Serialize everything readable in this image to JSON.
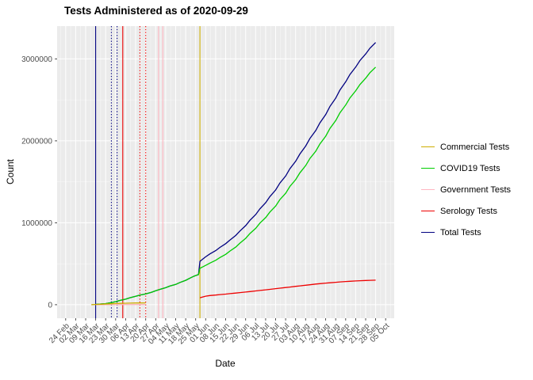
{
  "title": "Tests Administered as of 2020-09-29",
  "axes": {
    "x": {
      "label": "Date",
      "tick_labels": [
        "24 Feb",
        "02 Mar",
        "09 Mar",
        "16 Mar",
        "23 Mar",
        "30 Mar",
        "06 Apr",
        "13 Apr",
        "20 Apr",
        "27 Apr",
        "04 May",
        "11 May",
        "18 May",
        "25 May",
        "01 Jun",
        "08 Jun",
        "15 Jun",
        "22 Jun",
        "29 Jun",
        "06 Jul",
        "13 Jul",
        "20 Jul",
        "27 Jul",
        "03 Aug",
        "10 Aug",
        "17 Aug",
        "24 Aug",
        "31 Aug",
        "07 Sep",
        "14 Sep",
        "21 Sep",
        "28 Sep",
        "05 Oct"
      ]
    },
    "y": {
      "label": "Count",
      "ticks": [
        {
          "value": 0,
          "label": "0"
        },
        {
          "value": 1000000,
          "label": "1000000"
        },
        {
          "value": 2000000,
          "label": "2000000"
        },
        {
          "value": 3000000,
          "label": "3000000"
        }
      ]
    }
  },
  "legend": {
    "position": "right"
  },
  "colors": {
    "panel_background": "#EBEBEB",
    "grid_major": "#FFFFFF",
    "grid_minor": "#F7F7F7",
    "tick_text": "#4D4D4D",
    "tick_mark": "#333333"
  },
  "chart_data": {
    "type": "line",
    "x_unit": "days since 2020-02-24 (weekly ticks)",
    "x_tick_positions": [
      0,
      7,
      14,
      21,
      28,
      35,
      42,
      49,
      56,
      63,
      70,
      77,
      84,
      91,
      98,
      105,
      112,
      119,
      126,
      133,
      140,
      147,
      154,
      161,
      168,
      175,
      182,
      189,
      196,
      203,
      210,
      217,
      224
    ],
    "xlim": [
      -6,
      230
    ],
    "ylim": [
      -165000,
      3400000
    ],
    "y_minor": [
      500000,
      1500000,
      2500000
    ],
    "grid": true,
    "legend_position": "right",
    "draw_order": [
      4,
      1,
      2,
      3,
      0
    ],
    "series": [
      {
        "name": "Commercial Tests",
        "id": "commercial-tests",
        "color": "#CDAD00",
        "points": [
          [
            18,
            1000
          ],
          [
            21,
            3000
          ],
          [
            25,
            6000
          ],
          [
            28,
            9000
          ],
          [
            32,
            12000
          ],
          [
            35,
            15000
          ],
          [
            38,
            17000
          ],
          [
            42,
            19000
          ],
          [
            45,
            20000
          ],
          [
            49,
            21000
          ],
          [
            52,
            21500
          ],
          [
            56,
            22000
          ]
        ]
      },
      {
        "name": "COVID19 Tests",
        "id": "covid19-tests",
        "color": "#00CD00",
        "points": [
          [
            21,
            4000
          ],
          [
            24,
            8000
          ],
          [
            28,
            14000
          ],
          [
            32,
            25000
          ],
          [
            35,
            38000
          ],
          [
            38,
            52000
          ],
          [
            42,
            68000
          ],
          [
            45,
            85000
          ],
          [
            49,
            103000
          ],
          [
            52,
            118000
          ],
          [
            56,
            132000
          ],
          [
            60,
            152000
          ],
          [
            63,
            170000
          ],
          [
            66,
            188000
          ],
          [
            70,
            208000
          ],
          [
            73,
            228000
          ],
          [
            77,
            248000
          ],
          [
            80,
            272000
          ],
          [
            84,
            298000
          ],
          [
            87,
            325000
          ],
          [
            90,
            350000
          ],
          [
            93,
            368000
          ],
          [
            94,
            445000
          ],
          [
            98,
            480000
          ],
          [
            101,
            508000
          ],
          [
            105,
            542000
          ],
          [
            108,
            576000
          ],
          [
            112,
            615000
          ],
          [
            115,
            655000
          ],
          [
            119,
            703000
          ],
          [
            122,
            752000
          ],
          [
            126,
            810000
          ],
          [
            129,
            869000
          ],
          [
            133,
            932000
          ],
          [
            136,
            996000
          ],
          [
            140,
            1063000
          ],
          [
            143,
            1132000
          ],
          [
            147,
            1204000
          ],
          [
            150,
            1283000
          ],
          [
            154,
            1360000
          ],
          [
            157,
            1444000
          ],
          [
            161,
            1526000
          ],
          [
            164,
            1610000
          ],
          [
            168,
            1697000
          ],
          [
            171,
            1786000
          ],
          [
            175,
            1873000
          ],
          [
            178,
            1963000
          ],
          [
            182,
            2056000
          ],
          [
            185,
            2152000
          ],
          [
            189,
            2246000
          ],
          [
            192,
            2342000
          ],
          [
            196,
            2437000
          ],
          [
            199,
            2524000
          ],
          [
            203,
            2610000
          ],
          [
            206,
            2687000
          ],
          [
            210,
            2764000
          ],
          [
            213,
            2832000
          ],
          [
            217,
            2900000
          ]
        ]
      },
      {
        "name": "Government Tests",
        "id": "government-tests",
        "color": "#FFB6C1",
        "points": [
          [
            21,
            500
          ],
          [
            28,
            1000
          ],
          [
            35,
            1500
          ],
          [
            42,
            2000
          ],
          [
            49,
            2500
          ],
          [
            56,
            3000
          ]
        ]
      },
      {
        "name": "Serology Tests",
        "id": "serology-tests",
        "color": "#EE0000",
        "points": [
          [
            94,
            85000
          ],
          [
            98,
            105000
          ],
          [
            101,
            112000
          ],
          [
            105,
            118000
          ],
          [
            108,
            124000
          ],
          [
            112,
            130000
          ],
          [
            115,
            135000
          ],
          [
            119,
            142000
          ],
          [
            122,
            148000
          ],
          [
            126,
            155000
          ],
          [
            129,
            161000
          ],
          [
            133,
            168000
          ],
          [
            136,
            174000
          ],
          [
            140,
            182000
          ],
          [
            143,
            188000
          ],
          [
            147,
            196000
          ],
          [
            150,
            202000
          ],
          [
            154,
            210000
          ],
          [
            157,
            216000
          ],
          [
            161,
            224000
          ],
          [
            164,
            230000
          ],
          [
            168,
            238000
          ],
          [
            171,
            244000
          ],
          [
            175,
            252000
          ],
          [
            178,
            257000
          ],
          [
            182,
            264000
          ],
          [
            185,
            268000
          ],
          [
            189,
            274000
          ],
          [
            192,
            278000
          ],
          [
            196,
            283000
          ],
          [
            199,
            286000
          ],
          [
            203,
            290000
          ],
          [
            206,
            293000
          ],
          [
            210,
            296000
          ],
          [
            213,
            298000
          ],
          [
            217,
            300000
          ]
        ]
      },
      {
        "name": "Total Tests",
        "id": "total-tests",
        "color": "#000080",
        "points": [
          [
            21,
            4000
          ],
          [
            24,
            8000
          ],
          [
            28,
            14000
          ],
          [
            32,
            25000
          ],
          [
            35,
            38000
          ],
          [
            38,
            52000
          ],
          [
            42,
            68000
          ],
          [
            45,
            85000
          ],
          [
            49,
            103000
          ],
          [
            52,
            118000
          ],
          [
            56,
            132000
          ],
          [
            60,
            152000
          ],
          [
            63,
            170000
          ],
          [
            66,
            188000
          ],
          [
            70,
            208000
          ],
          [
            73,
            228000
          ],
          [
            77,
            248000
          ],
          [
            80,
            272000
          ],
          [
            84,
            298000
          ],
          [
            87,
            325000
          ],
          [
            90,
            350000
          ],
          [
            93,
            368000
          ],
          [
            94,
            530000
          ],
          [
            98,
            585000
          ],
          [
            101,
            620000
          ],
          [
            105,
            660000
          ],
          [
            108,
            700000
          ],
          [
            112,
            745000
          ],
          [
            115,
            790000
          ],
          [
            119,
            845000
          ],
          [
            122,
            900000
          ],
          [
            126,
            965000
          ],
          [
            129,
            1030000
          ],
          [
            133,
            1100000
          ],
          [
            136,
            1170000
          ],
          [
            140,
            1245000
          ],
          [
            143,
            1320000
          ],
          [
            147,
            1400000
          ],
          [
            150,
            1485000
          ],
          [
            154,
            1570000
          ],
          [
            157,
            1660000
          ],
          [
            161,
            1750000
          ],
          [
            164,
            1840000
          ],
          [
            168,
            1935000
          ],
          [
            171,
            2030000
          ],
          [
            175,
            2125000
          ],
          [
            178,
            2220000
          ],
          [
            182,
            2320000
          ],
          [
            185,
            2420000
          ],
          [
            189,
            2520000
          ],
          [
            192,
            2620000
          ],
          [
            196,
            2720000
          ],
          [
            199,
            2810000
          ],
          [
            203,
            2900000
          ],
          [
            206,
            2980000
          ],
          [
            210,
            3060000
          ],
          [
            213,
            3130000
          ],
          [
            217,
            3200000
          ]
        ]
      }
    ],
    "vlines": [
      {
        "x": 21,
        "color": "#000080",
        "style": "solid"
      },
      {
        "x": 32,
        "color": "#000080",
        "style": "dotted"
      },
      {
        "x": 36,
        "color": "#000080",
        "style": "dotted"
      },
      {
        "x": 40,
        "color": "#EE0000",
        "style": "solid"
      },
      {
        "x": 52,
        "color": "#EE0000",
        "style": "dotted"
      },
      {
        "x": 56,
        "color": "#EE0000",
        "style": "dotted"
      },
      {
        "x": 65,
        "color": "#FFB6C1",
        "style": "solid"
      },
      {
        "x": 68,
        "color": "#FFB6C1",
        "style": "solid"
      },
      {
        "x": 94,
        "color": "#CDAD00",
        "style": "solid"
      }
    ]
  }
}
